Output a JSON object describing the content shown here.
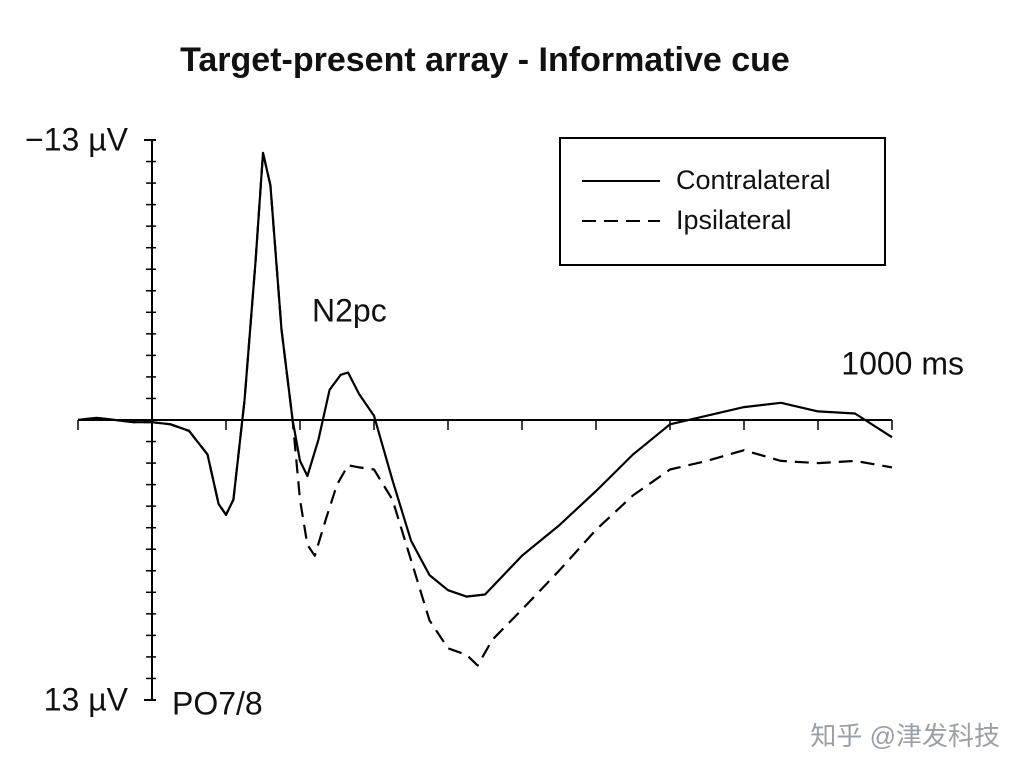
{
  "chart_data": {
    "type": "line",
    "title": "Target-present array - Informative cue",
    "annotations": [
      "N2pc",
      "PO7/8"
    ],
    "watermark": "知乎 @津发科技",
    "xlim": [
      -100,
      1000
    ],
    "xticks": [
      {
        "value": 1000,
        "label": "1000 ms"
      }
    ],
    "xminor_ticks": [
      -100,
      0,
      100,
      200,
      300,
      400,
      500,
      600,
      700,
      800,
      900
    ],
    "ylim": [
      -13,
      13
    ],
    "y_inverted": true,
    "yticks": [
      {
        "value": -13,
        "label": "−13 µV"
      },
      {
        "value": 13,
        "label": "13 µV"
      }
    ],
    "yminor_ticks": [
      -12,
      -11,
      -10,
      -9,
      -8,
      -7,
      -6,
      -5,
      -4,
      -3,
      -2,
      -1,
      0,
      1,
      2,
      3,
      4,
      5,
      6,
      7,
      8,
      9,
      10,
      11,
      12
    ],
    "legend": "upper right",
    "series": [
      {
        "name": "Contralateral",
        "color": "#000000",
        "dash": "solid",
        "x": [
          -100,
          -75,
          -50,
          -25,
          0,
          25,
          50,
          75,
          90,
          100,
          110,
          125,
          140,
          150,
          160,
          175,
          190,
          200,
          210,
          225,
          240,
          255,
          265,
          280,
          300,
          325,
          350,
          375,
          400,
          425,
          450,
          475,
          500,
          550,
          600,
          650,
          700,
          750,
          800,
          850,
          900,
          950,
          1000
        ],
        "values": [
          0,
          -0.1,
          0,
          0.1,
          0.1,
          0.2,
          0.5,
          1.6,
          3.9,
          4.4,
          3.7,
          -0.9,
          -7.4,
          -12.4,
          -10.9,
          -4.2,
          0,
          1.9,
          2.6,
          0.9,
          -1.4,
          -2.1,
          -2.2,
          -1.2,
          -0.2,
          2.8,
          5.6,
          7.2,
          7.9,
          8.2,
          8.1,
          7.2,
          6.3,
          4.9,
          3.3,
          1.6,
          0.2,
          -0.2,
          -0.6,
          -0.8,
          -0.4,
          -0.3,
          0.8
        ]
      },
      {
        "name": "Ipsilateral",
        "color": "#000000",
        "dash": "dashed",
        "x": [
          -100,
          -75,
          -50,
          -25,
          0,
          25,
          50,
          75,
          90,
          100,
          110,
          125,
          140,
          150,
          160,
          175,
          190,
          200,
          210,
          220,
          235,
          250,
          265,
          280,
          300,
          325,
          350,
          375,
          400,
          425,
          440,
          460,
          500,
          550,
          600,
          650,
          700,
          750,
          800,
          850,
          900,
          950,
          1000
        ],
        "values": [
          0,
          -0.1,
          0,
          0.1,
          0.1,
          0.2,
          0.5,
          1.6,
          3.9,
          4.4,
          3.7,
          -0.9,
          -7.4,
          -12.4,
          -10.9,
          -4.2,
          0,
          3.7,
          5.8,
          6.3,
          4.6,
          3.0,
          2.1,
          2.2,
          2.3,
          3.7,
          6.5,
          9.3,
          10.6,
          10.9,
          11.4,
          10.2,
          8.8,
          7.0,
          5.1,
          3.5,
          2.3,
          1.9,
          1.4,
          1.9,
          2.0,
          1.9,
          2.2
        ]
      }
    ]
  }
}
